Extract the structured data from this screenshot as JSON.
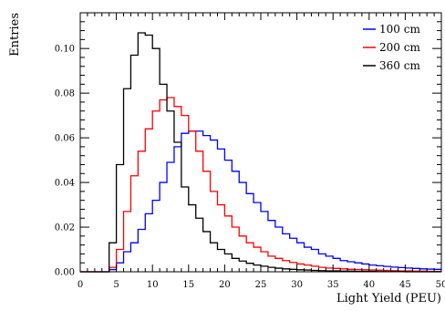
{
  "chart_data": {
    "type": "line",
    "style": "histogram",
    "xlabel": "Light Yield (PEU)",
    "ylabel": "Entries",
    "xlim": [
      0,
      50
    ],
    "ylim": [
      0,
      0.116
    ],
    "xticks": [
      "0",
      "5",
      "10",
      "15",
      "20",
      "25",
      "30",
      "35",
      "40",
      "45",
      "50"
    ],
    "yticks": [
      "0.00",
      "0.02",
      "0.04",
      "0.06",
      "0.08",
      "0.10"
    ],
    "bin_width": 1,
    "bin_edges_start": 0,
    "legend_position": "top-right",
    "grid": false,
    "series": [
      {
        "name": "100 cm",
        "color": "#0000ff",
        "values": [
          0,
          0,
          0,
          0,
          0.001,
          0.004,
          0.009,
          0.013,
          0.019,
          0.026,
          0.032,
          0.04,
          0.049,
          0.056,
          0.062,
          0.063,
          0.063,
          0.061,
          0.059,
          0.055,
          0.05,
          0.045,
          0.04,
          0.035,
          0.031,
          0.027,
          0.023,
          0.02,
          0.017,
          0.015,
          0.013,
          0.011,
          0.01,
          0.008,
          0.007,
          0.006,
          0.005,
          0.0045,
          0.004,
          0.0035,
          0.003,
          0.0027,
          0.0024,
          0.0021,
          0.0019,
          0.0017,
          0.0015,
          0.0013,
          0.0012,
          0.0011
        ]
      },
      {
        "name": "200 cm",
        "color": "#ff0000",
        "values": [
          0,
          0,
          0,
          0,
          0.002,
          0.01,
          0.027,
          0.043,
          0.054,
          0.064,
          0.072,
          0.077,
          0.078,
          0.074,
          0.07,
          0.063,
          0.054,
          0.045,
          0.036,
          0.03,
          0.025,
          0.02,
          0.016,
          0.013,
          0.011,
          0.009,
          0.007,
          0.006,
          0.005,
          0.0042,
          0.0035,
          0.003,
          0.0025,
          0.002,
          0.0017,
          0.0015,
          0.0013,
          0.0011,
          0.001,
          0.0009,
          0.0008,
          0.0007,
          0.0006,
          0.0005,
          0.0004,
          0.0004,
          0.0003,
          0.0003,
          0.0002,
          0.0002
        ]
      },
      {
        "name": "360 cm",
        "color": "#000000",
        "values": [
          0,
          0,
          0,
          0,
          0.013,
          0.048,
          0.082,
          0.097,
          0.107,
          0.106,
          0.1,
          0.084,
          0.072,
          0.058,
          0.038,
          0.03,
          0.024,
          0.018,
          0.013,
          0.01,
          0.008,
          0.006,
          0.0048,
          0.0038,
          0.003,
          0.0025,
          0.002,
          0.0016,
          0.0013,
          0.0011,
          0.0009,
          0.0008,
          0.0006,
          0.0005,
          0.0004,
          0.0004,
          0.0003,
          0.0003,
          0.0002,
          0.0002,
          0.0002,
          0.0001,
          0.0001,
          0.0001,
          0.0001,
          0,
          0,
          0,
          0,
          0
        ]
      }
    ]
  }
}
